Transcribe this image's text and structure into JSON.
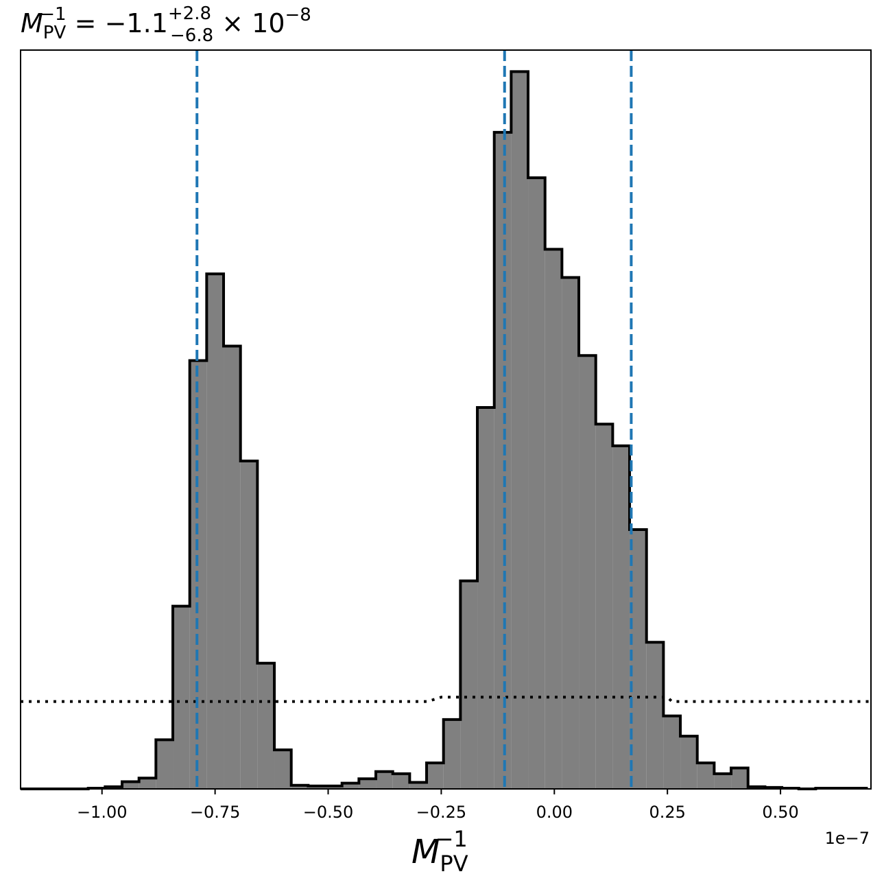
{
  "chart_data": {
    "type": "bar",
    "title": {
      "base": "M",
      "sub": "PV",
      "sup": "−1",
      "eq": " = −1.1",
      "err_plus": "+2.8",
      "err_minus": "−6.8",
      "times": " × 10",
      "exp": "−8"
    },
    "xlabel": {
      "base": "M",
      "sub": "PV",
      "sup": "−1"
    },
    "ylabel": "",
    "offset_text": "1e−7",
    "xlim": [
      -1.18e-07,
      7e-08
    ],
    "ylim": [
      0,
      1.0
    ],
    "xticks": [
      {
        "value": -1e-07,
        "label": "−1.00"
      },
      {
        "value": -7.5e-08,
        "label": "−0.75"
      },
      {
        "value": -5e-08,
        "label": "−0.50"
      },
      {
        "value": -2.5e-08,
        "label": "−0.25"
      },
      {
        "value": 0.0,
        "label": "0.00"
      },
      {
        "value": 2.5e-08,
        "label": "0.25"
      },
      {
        "value": 5e-08,
        "label": "0.50"
      }
    ],
    "bin_edges": [
      -1.18e-07,
      -1.1426e-07,
      -1.1052e-07,
      -1.0678e-07,
      -1.0304e-07,
      -9.93e-08,
      -9.556e-08,
      -9.182e-08,
      -8.808e-08,
      -8.434e-08,
      -8.06e-08,
      -7.686e-08,
      -7.312e-08,
      -6.938e-08,
      -6.564e-08,
      -6.19e-08,
      -5.816e-08,
      -5.442e-08,
      -5.068e-08,
      -4.694e-08,
      -4.32e-08,
      -3.946e-08,
      -3.572e-08,
      -3.198e-08,
      -2.824e-08,
      -2.45e-08,
      -2.076e-08,
      -1.702e-08,
      -1.328e-08,
      -9.54e-09,
      -5.8e-09,
      -2.06e-09,
      1.68e-09,
      5.42e-09,
      9.16e-09,
      1.29e-08,
      1.664e-08,
      2.038e-08,
      2.412e-08,
      2.786e-08,
      3.16e-08,
      3.534e-08,
      3.908e-08,
      4.282e-08,
      4.656e-08,
      5.03e-08,
      5.404e-08,
      5.778e-08,
      6.152e-08,
      6.526e-08,
      6.9e-08
    ],
    "bin_heights": [
      0.0,
      0.0,
      0.0,
      0.0,
      0.001,
      0.003,
      0.01,
      0.015,
      0.068,
      0.253,
      0.593,
      0.713,
      0.613,
      0.454,
      0.174,
      0.054,
      0.005,
      0.004,
      0.004,
      0.008,
      0.014,
      0.024,
      0.021,
      0.009,
      0.036,
      0.096,
      0.288,
      0.528,
      0.909,
      0.993,
      0.846,
      0.747,
      0.708,
      0.6,
      0.505,
      0.475,
      0.359,
      0.203,
      0.101,
      0.073,
      0.036,
      0.021,
      0.029,
      0.003,
      0.002,
      0.001,
      0.0,
      0.001,
      0.001,
      0.001
    ],
    "quantile_lines": [
      -7.9e-08,
      -1.1e-08,
      1.7e-08
    ],
    "prior": {
      "x": [
        -1.18e-07,
        -2.8e-08,
        -2.5e-08,
        2.5e-08,
        2.6e-08,
        7e-08
      ],
      "y": [
        0.121,
        0.121,
        0.127,
        0.127,
        0.121,
        0.121
      ]
    },
    "grid": false,
    "colors": {
      "fill": "#808080",
      "edge": "#000000",
      "quantile": "#1f77b4",
      "prior": "#000000"
    }
  }
}
